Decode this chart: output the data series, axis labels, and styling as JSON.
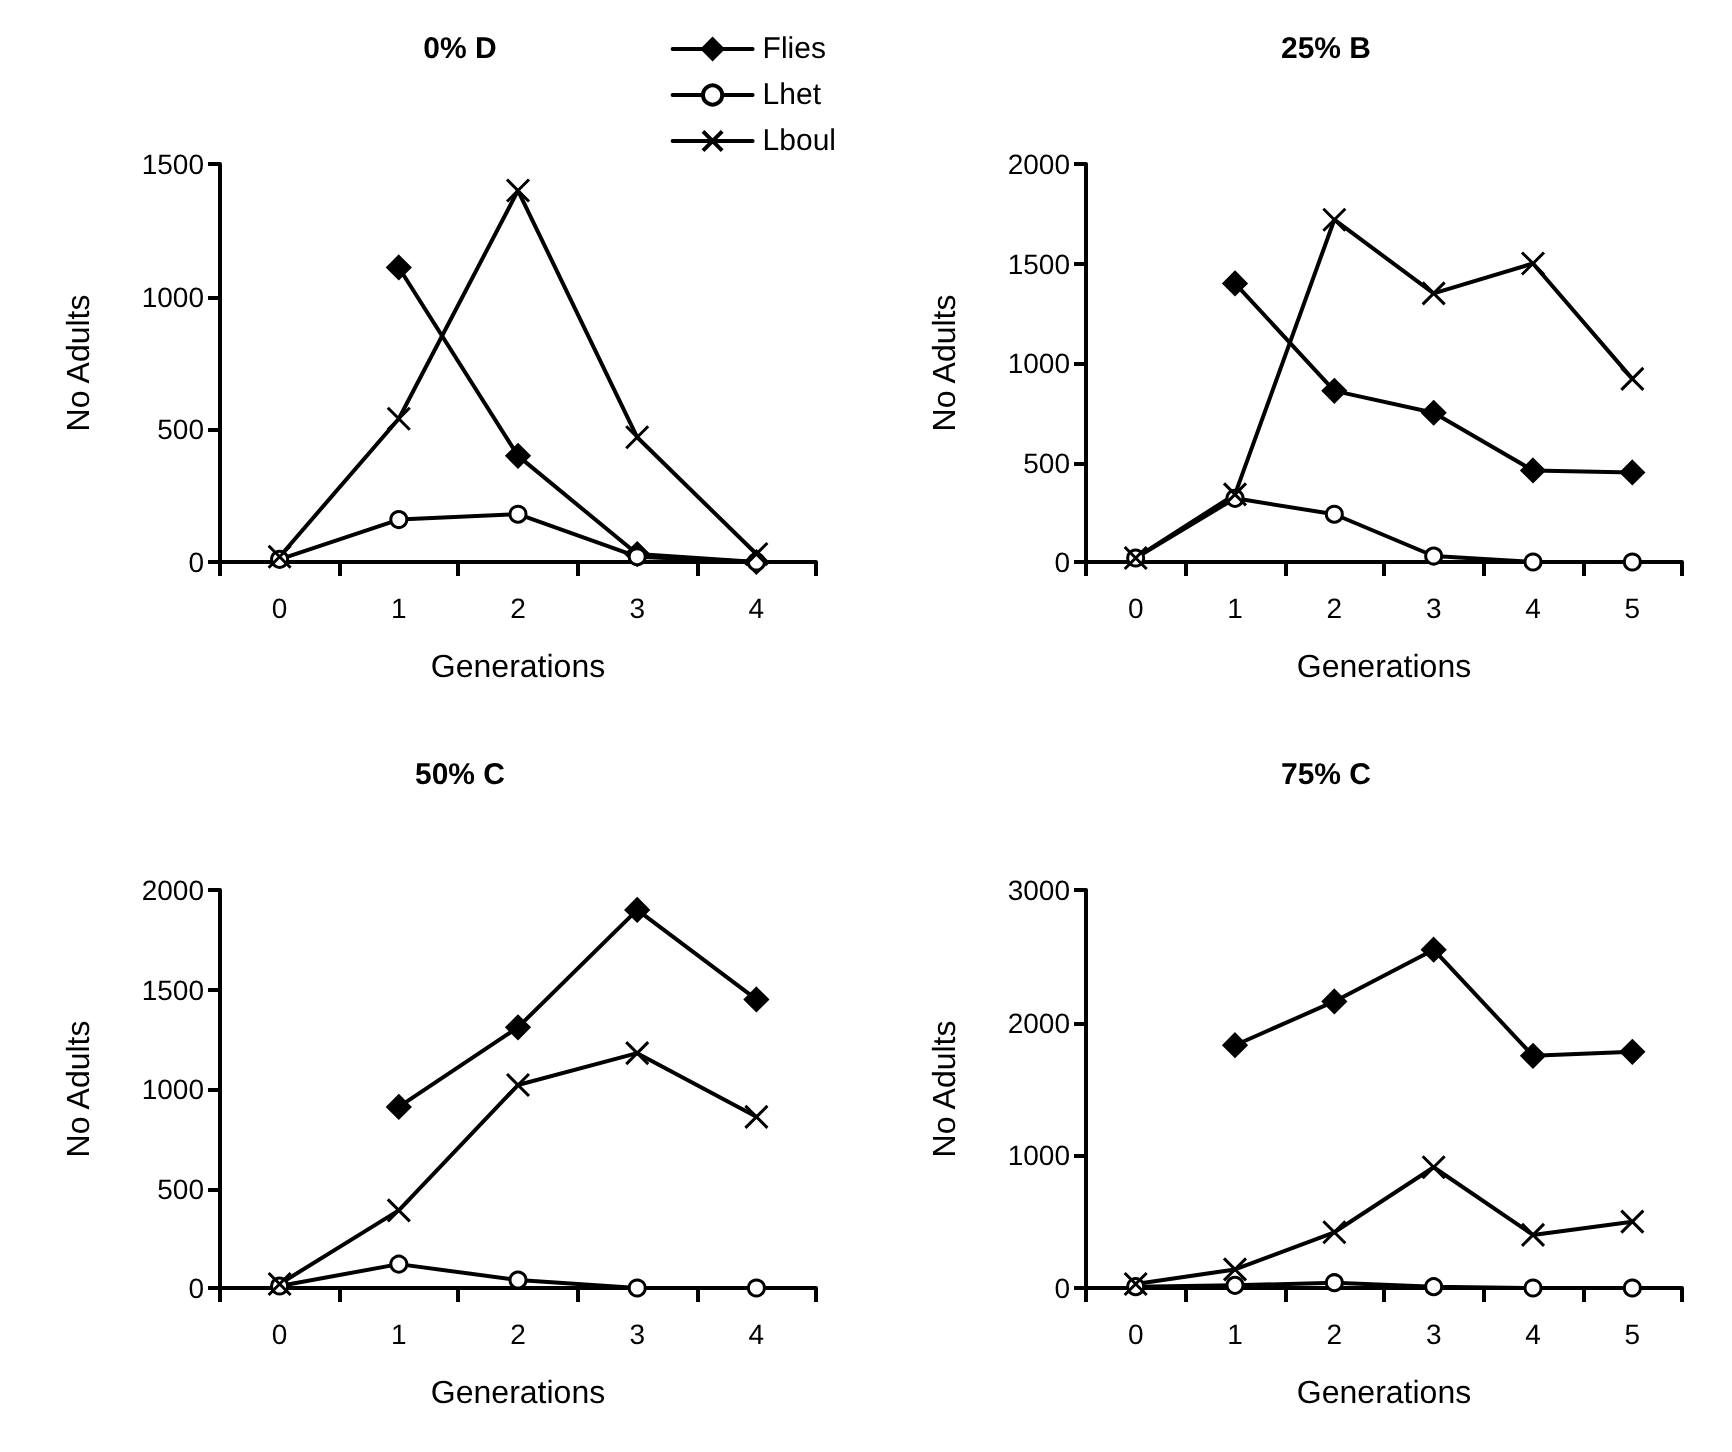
{
  "chart_data": [
    {
      "type": "line",
      "title": "0% D",
      "xlabel": "Generations",
      "ylabel": "No Adults",
      "categories": [
        "0",
        "1",
        "2",
        "3",
        "4"
      ],
      "ylim": [
        0,
        1500
      ],
      "yticks": [
        0,
        500,
        1000,
        1500
      ],
      "legend": "top right",
      "series": [
        {
          "name": "Flies",
          "color": "#000000",
          "marker": "diamond",
          "values": [
            null,
            1110,
            400,
            30,
            0
          ]
        },
        {
          "name": "Lhet",
          "color": "#000000",
          "marker": "circle",
          "values": [
            10,
            160,
            180,
            20,
            0
          ]
        },
        {
          "name": "Lboul",
          "color": "#000000",
          "marker": "cross",
          "values": [
            20,
            540,
            1400,
            470,
            30
          ]
        }
      ]
    },
    {
      "type": "line",
      "title": "25% B",
      "xlabel": "Generations",
      "ylabel": "No Adults",
      "categories": [
        "0",
        "1",
        "2",
        "3",
        "4",
        "5"
      ],
      "ylim": [
        0,
        2000
      ],
      "yticks": [
        0,
        500,
        1000,
        1500,
        2000
      ],
      "series": [
        {
          "color": "#000000",
          "marker": "diamond",
          "values": [
            null,
            1400,
            860,
            750,
            460,
            450
          ]
        },
        {
          "color": "#000000",
          "marker": "circle",
          "values": [
            20,
            320,
            240,
            30,
            0,
            0
          ]
        },
        {
          "color": "#000000",
          "marker": "cross",
          "values": [
            20,
            340,
            1720,
            1350,
            1500,
            920
          ]
        }
      ]
    },
    {
      "type": "line",
      "title": "50% C",
      "xlabel": "Generations",
      "ylabel": "No Adults",
      "categories": [
        "0",
        "1",
        "2",
        "3",
        "4"
      ],
      "ylim": [
        0,
        2000
      ],
      "yticks": [
        0,
        500,
        1000,
        1500,
        2000
      ],
      "series": [
        {
          "color": "#000000",
          "marker": "diamond",
          "values": [
            null,
            910,
            1310,
            1900,
            1450
          ]
        },
        {
          "color": "#000000",
          "marker": "circle",
          "values": [
            10,
            120,
            40,
            0,
            0
          ]
        },
        {
          "color": "#000000",
          "marker": "cross",
          "values": [
            20,
            390,
            1020,
            1180,
            860
          ]
        }
      ]
    },
    {
      "type": "line",
      "title": "75% C",
      "xlabel": "Generations",
      "ylabel": "No Adults",
      "categories": [
        "0",
        "1",
        "2",
        "3",
        "4",
        "5"
      ],
      "ylim": [
        0,
        3000
      ],
      "yticks": [
        0,
        1000,
        2000,
        3000
      ],
      "series": [
        {
          "color": "#000000",
          "marker": "diamond",
          "values": [
            null,
            1830,
            2160,
            2550,
            1750,
            1780
          ]
        },
        {
          "color": "#000000",
          "marker": "circle",
          "values": [
            10,
            20,
            40,
            10,
            0,
            0
          ]
        },
        {
          "color": "#000000",
          "marker": "cross",
          "values": [
            30,
            140,
            420,
            910,
            400,
            500
          ]
        }
      ]
    }
  ]
}
